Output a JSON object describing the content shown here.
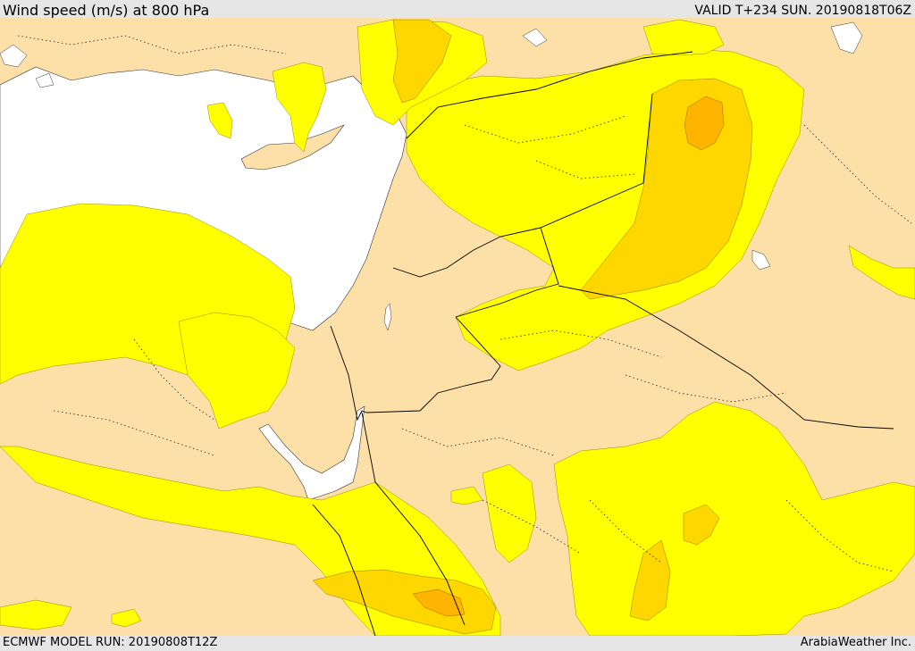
{
  "header": {
    "title": "Wind speed (m/s) at 800 hPa",
    "valid": "VALID T+234 SUN. 20190818T06Z"
  },
  "footer": {
    "model_run": "ECMWF MODEL RUN: 20190808T12Z",
    "credit": "ArabiaWeather Inc."
  },
  "colors": {
    "sea": "#ffffff",
    "background_speed": "#fde0a8",
    "level_1": "#ffff00",
    "level_2": "#ffd700",
    "level_3": "#ffb400",
    "border": "#000000"
  }
}
